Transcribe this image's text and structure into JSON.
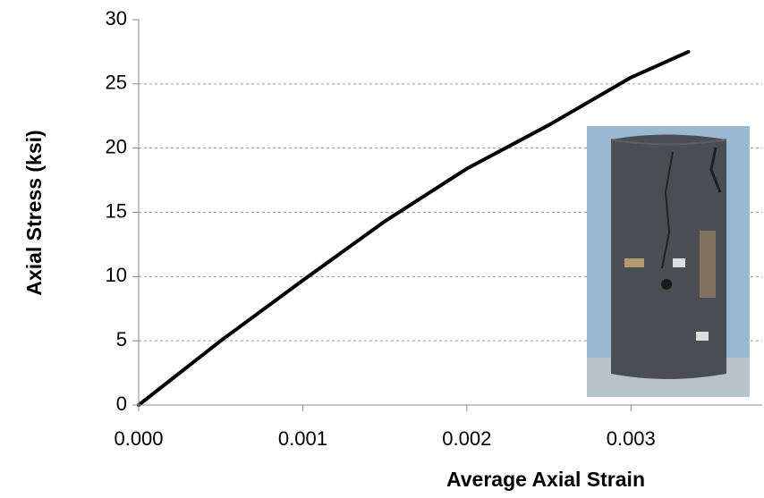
{
  "chart_data": {
    "type": "line",
    "x_label": "Average Axial Strain",
    "y_label": "Axial Stress (ksi)",
    "x": [
      0,
      0.0005,
      0.001,
      0.0015,
      0.002,
      0.0025,
      0.003,
      0.00335
    ],
    "series": [
      {
        "color": "#000000",
        "values": [
          0,
          5.0,
          9.7,
          14.3,
          18.4,
          21.8,
          25.5,
          27.5
        ]
      }
    ],
    "xlim": [
      0,
      0.0038
    ],
    "xticks": [
      {
        "value": 0,
        "label": "0.000"
      },
      {
        "value": 0.001,
        "label": "0.001"
      },
      {
        "value": 0.002,
        "label": "0.002"
      },
      {
        "value": 0.003,
        "label": "0.003"
      }
    ],
    "ylim": [
      0,
      30
    ],
    "yticks": [
      0,
      5,
      10,
      15,
      20,
      25,
      30
    ],
    "grid": true
  }
}
